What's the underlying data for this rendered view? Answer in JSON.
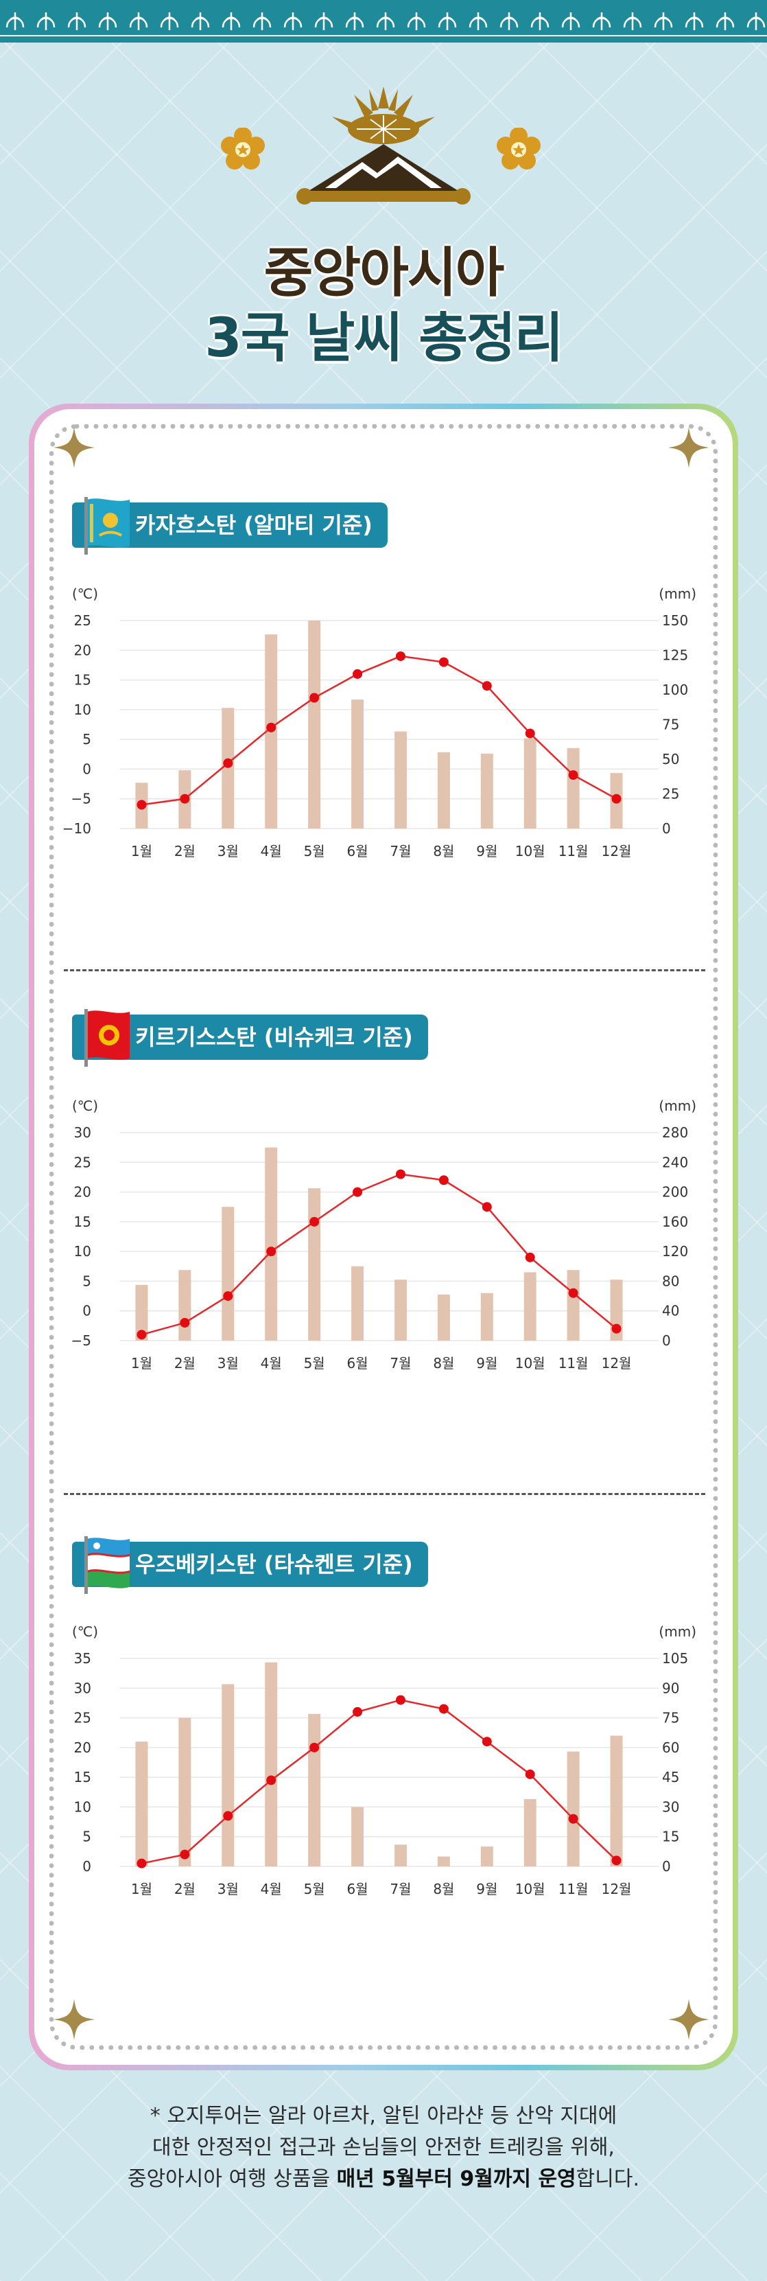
{
  "header": {
    "title_line1": "중앙아시아",
    "title_line2": "3국 날씨 총정리"
  },
  "colors": {
    "band": "#1f8a9a",
    "badge": "#1c8aa6",
    "bar": "#e2c3b0",
    "line": "#e5282b",
    "point": "#e20b12"
  },
  "chart_data": [
    {
      "type": "bar+line",
      "title": "카자흐스탄 (알마티 기준)",
      "categories": [
        "1월",
        "2월",
        "3월",
        "4월",
        "5월",
        "6월",
        "7월",
        "8월",
        "9월",
        "10월",
        "11월",
        "12월"
      ],
      "left_axis": {
        "unit": "(℃)",
        "min": -10,
        "max": 25,
        "ticks": [
          -10,
          -5,
          0,
          5,
          10,
          15,
          20,
          25
        ],
        "tick_labels": [
          "−10",
          "−5",
          "0",
          "5",
          "10",
          "15",
          "20",
          "25"
        ]
      },
      "right_axis": {
        "unit": "(mm)",
        "min": 0,
        "max": 150,
        "ticks": [
          0,
          25,
          50,
          75,
          100,
          125,
          150
        ],
        "tick_labels": [
          "0",
          "25",
          "50",
          "75",
          "100",
          "125",
          "150"
        ]
      },
      "series": [
        {
          "type": "bar",
          "axis": "right",
          "values": [
            33,
            42,
            87,
            140,
            150,
            93,
            70,
            55,
            54,
            65,
            58,
            40
          ]
        },
        {
          "type": "line",
          "axis": "left",
          "values": [
            -6,
            -5,
            1,
            7,
            12,
            16,
            19,
            18,
            14,
            6,
            -1,
            -5
          ]
        }
      ]
    },
    {
      "type": "bar+line",
      "title": "키르기스스탄 (비슈케크 기준)",
      "categories": [
        "1월",
        "2월",
        "3월",
        "4월",
        "5월",
        "6월",
        "7월",
        "8월",
        "9월",
        "10월",
        "11월",
        "12월"
      ],
      "left_axis": {
        "unit": "(℃)",
        "min": -5,
        "max": 30,
        "ticks": [
          -5,
          0,
          5,
          10,
          15,
          20,
          25,
          30
        ],
        "tick_labels": [
          "−5",
          "0",
          "5",
          "10",
          "15",
          "20",
          "25",
          "30"
        ]
      },
      "right_axis": {
        "unit": "(mm)",
        "min": 0,
        "max": 280,
        "ticks": [
          0,
          40,
          80,
          120,
          160,
          200,
          240,
          280
        ],
        "tick_labels": [
          "0",
          "40",
          "80",
          "120",
          "160",
          "200",
          "240",
          "280"
        ]
      },
      "series": [
        {
          "type": "bar",
          "axis": "right",
          "values": [
            75,
            95,
            180,
            260,
            205,
            100,
            82,
            62,
            64,
            92,
            95,
            82
          ]
        },
        {
          "type": "line",
          "axis": "left",
          "values": [
            -4,
            -2,
            2.5,
            10,
            15,
            20,
            23,
            22,
            17.5,
            9,
            3,
            -3
          ]
        }
      ]
    },
    {
      "type": "bar+line",
      "title": "우즈베키스탄 (타슈켄트 기준)",
      "categories": [
        "1월",
        "2월",
        "3월",
        "4월",
        "5월",
        "6월",
        "7월",
        "8월",
        "9월",
        "10월",
        "11월",
        "12월"
      ],
      "left_axis": {
        "unit": "(℃)",
        "min": 0,
        "max": 35,
        "ticks": [
          0,
          5,
          10,
          15,
          20,
          25,
          30,
          35
        ],
        "tick_labels": [
          "0",
          "5",
          "10",
          "15",
          "20",
          "25",
          "30",
          "35"
        ]
      },
      "right_axis": {
        "unit": "(mm)",
        "min": 0,
        "max": 105,
        "ticks": [
          0,
          15,
          30,
          45,
          60,
          75,
          90,
          105
        ],
        "tick_labels": [
          "0",
          "15",
          "30",
          "45",
          "60",
          "75",
          "90",
          "105"
        ]
      },
      "series": [
        {
          "type": "bar",
          "axis": "right",
          "values": [
            63,
            75,
            92,
            103,
            77,
            30,
            11,
            5,
            10,
            34,
            58,
            66
          ]
        },
        {
          "type": "line",
          "axis": "left",
          "values": [
            0.5,
            2,
            8.5,
            14.5,
            20,
            26,
            28,
            26.5,
            21,
            15.5,
            8,
            1
          ]
        }
      ]
    }
  ],
  "footnote": {
    "line1": "* 오지투어는 알라 아르차, 알틴 아라샨 등 산악 지대에",
    "line2": "대한 안정적인 접근과 손님들의 안전한 트레킹을 위해,",
    "line3_pre": "중앙아시아 여행 상품을 ",
    "line3_bold": "매년 5월부터 9월까지 운영",
    "line3_post": "합니다."
  }
}
